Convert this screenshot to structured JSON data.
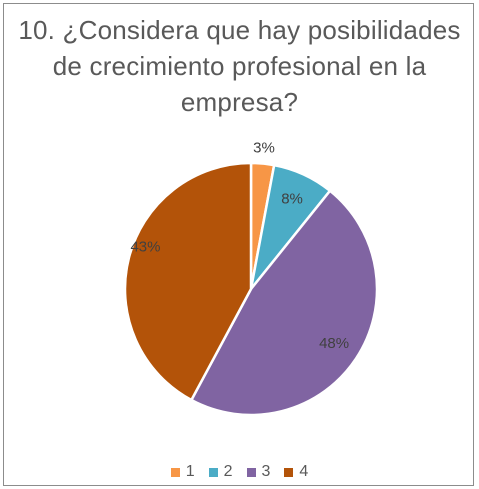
{
  "chart_data": {
    "type": "pie",
    "title": "10. ¿Considera que hay posibilidades de crecimiento profesional en la empresa?",
    "categories": [
      "1",
      "2",
      "3",
      "4"
    ],
    "values": [
      3,
      8,
      48,
      43
    ],
    "data_labels": [
      "3%",
      "8%",
      "48%",
      "43%"
    ],
    "colors": [
      "#f79646",
      "#4bacc6",
      "#8064a2",
      "#b35309"
    ],
    "legend_position": "bottom",
    "start_angle_deg": 0,
    "direction": "clockwise"
  }
}
